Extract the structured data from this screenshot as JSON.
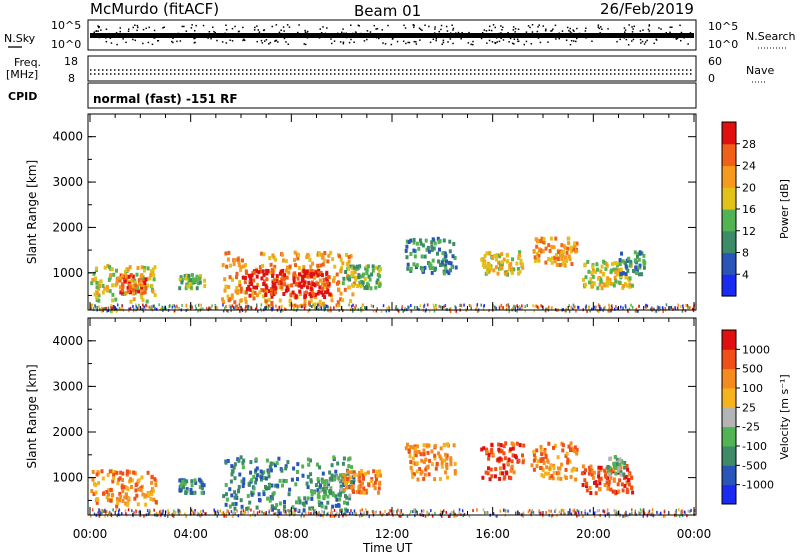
{
  "header": {
    "station": "McMurdo (fitACF)",
    "beam": "Beam 01",
    "date": "26/Feb/2019"
  },
  "side_panels": {
    "nsky_label": "N.Sky",
    "nsky_ticks": [
      "10^5",
      "10^0"
    ],
    "nsearch_label": "N.Search",
    "nsearch_ticks": [
      "10^5",
      "10^0"
    ],
    "freq_label_line1": "Freq.",
    "freq_label_line2": "[MHz]",
    "freq_ticks": [
      "18",
      "8"
    ],
    "nave_label": "Nave",
    "nave_ticks": [
      "60",
      "0"
    ],
    "cpid_label": "CPID",
    "cpid_text": "normal (fast) -151 RF"
  },
  "chart_data": [
    {
      "type": "heatmap",
      "name": "power",
      "ylabel": "Slant Range [km]",
      "y_ticks": [
        "1000",
        "2000",
        "3000",
        "4000"
      ],
      "ylim": [
        180,
        4500
      ],
      "xlim": [
        "00:00",
        "24:00"
      ],
      "colorbar_label": "Power [dB]",
      "colorbar_ticks": [
        "4",
        "8",
        "12",
        "16",
        "20",
        "24",
        "28"
      ],
      "colorbar_colors": [
        "#1b2af0",
        "#2a55b8",
        "#3c8a68",
        "#52b352",
        "#e2c21a",
        "#f59a1c",
        "#f06018",
        "#e01010"
      ],
      "blobs": [
        {
          "t": [
            0.0,
            2.6
          ],
          "r": [
            400,
            1200
          ],
          "level": 4
        },
        {
          "t": [
            1.0,
            2.2
          ],
          "r": [
            600,
            1000
          ],
          "level": 6
        },
        {
          "t": [
            3.5,
            4.5
          ],
          "r": [
            700,
            1000
          ],
          "level": 3
        },
        {
          "t": [
            5.2,
            10.5
          ],
          "r": [
            300,
            1500
          ],
          "level": 5
        },
        {
          "t": [
            6.0,
            9.5
          ],
          "r": [
            500,
            1100
          ],
          "level": 7
        },
        {
          "t": [
            10.0,
            11.5
          ],
          "r": [
            700,
            1200
          ],
          "level": 3
        },
        {
          "t": [
            12.5,
            14.5
          ],
          "r": [
            1000,
            1800
          ],
          "level": 2
        },
        {
          "t": [
            15.5,
            17.2
          ],
          "r": [
            1000,
            1500
          ],
          "level": 4
        },
        {
          "t": [
            17.5,
            19.3
          ],
          "r": [
            1200,
            1800
          ],
          "level": 5
        },
        {
          "t": [
            19.5,
            21.5
          ],
          "r": [
            700,
            1300
          ],
          "level": 4
        },
        {
          "t": [
            21.0,
            22.0
          ],
          "r": [
            1000,
            1500
          ],
          "level": 2
        }
      ]
    },
    {
      "type": "heatmap",
      "name": "velocity",
      "ylabel": "Slant Range [km]",
      "y_ticks": [
        "1000",
        "2000",
        "3000",
        "4000"
      ],
      "ylim": [
        180,
        4500
      ],
      "xlim": [
        "00:00",
        "24:00"
      ],
      "xlabel": "Time UT",
      "x_ticks": [
        "00:00",
        "04:00",
        "08:00",
        "12:00",
        "16:00",
        "20:00",
        "00:00"
      ],
      "colorbar_label": "Velocity [m s⁻¹]",
      "colorbar_ticks": [
        "1000",
        "500",
        "100",
        "25",
        "-25",
        "-100",
        "-500",
        "-1000"
      ],
      "colorbar_colors": [
        "#1b2af0",
        "#2a55b8",
        "#3c8a68",
        "#52b352",
        "#b4b4b4",
        "#f5b41e",
        "#f58a1e",
        "#f05018",
        "#e01010"
      ],
      "blobs": [
        {
          "t": [
            0.0,
            2.6
          ],
          "r": [
            400,
            1200
          ],
          "level": 6
        },
        {
          "t": [
            3.5,
            4.5
          ],
          "r": [
            700,
            1000
          ],
          "level": 2
        },
        {
          "t": [
            5.2,
            10.5
          ],
          "r": [
            300,
            1500
          ],
          "level": 2
        },
        {
          "t": [
            9.0,
            10.3
          ],
          "r": [
            600,
            1100
          ],
          "level": 3
        },
        {
          "t": [
            10.0,
            11.5
          ],
          "r": [
            700,
            1200
          ],
          "level": 6
        },
        {
          "t": [
            12.5,
            14.5
          ],
          "r": [
            1000,
            1800
          ],
          "level": 6
        },
        {
          "t": [
            15.5,
            17.2
          ],
          "r": [
            1000,
            1800
          ],
          "level": 7
        },
        {
          "t": [
            17.5,
            19.3
          ],
          "r": [
            1000,
            1800
          ],
          "level": 6
        },
        {
          "t": [
            19.5,
            21.5
          ],
          "r": [
            700,
            1300
          ],
          "level": 7
        },
        {
          "t": [
            20.5,
            21.2
          ],
          "r": [
            1100,
            1500
          ],
          "level": 3
        }
      ]
    }
  ]
}
